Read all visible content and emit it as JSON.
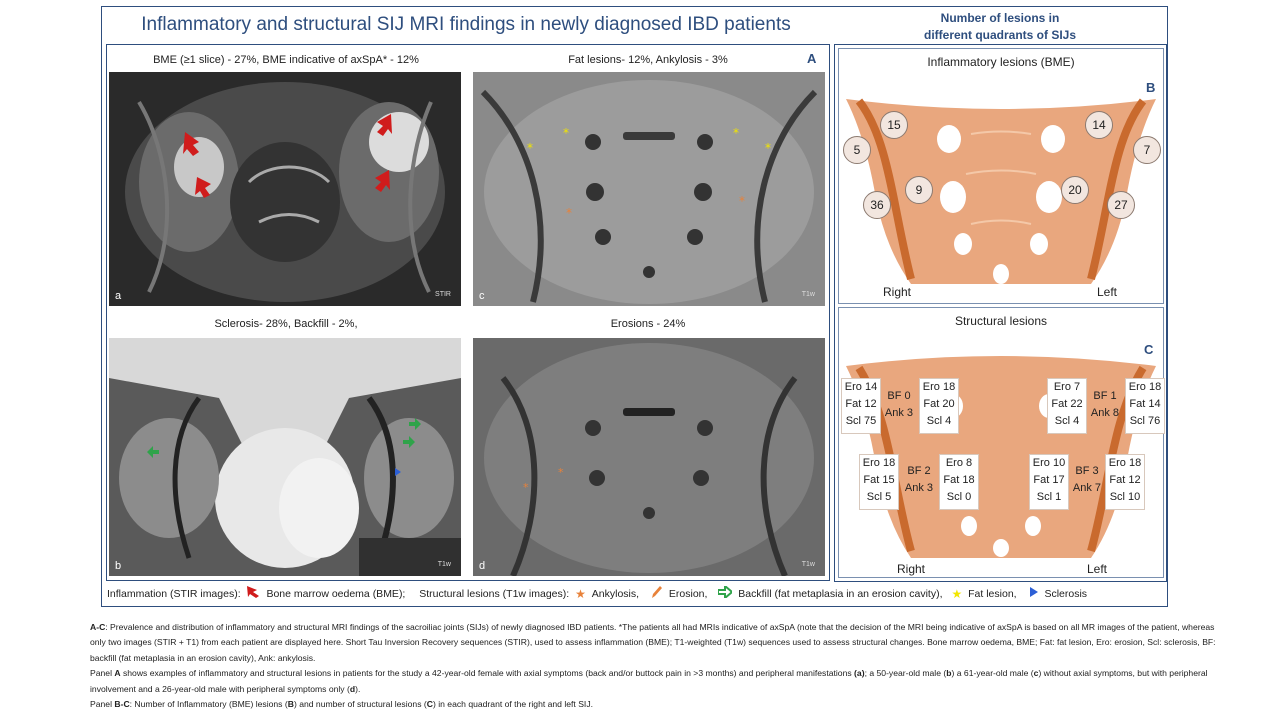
{
  "title": "Inflammatory and structural SIJ MRI findings in newly diagnosed IBD patients",
  "right_title_line1": "Number of lesions in",
  "right_title_line2": "different quadrants  of SIJs",
  "panelA": {
    "letter": "A",
    "images": [
      {
        "caption": "BME (≥1 slice) - 27%, BME indicative of axSpA* - 12%",
        "label": "a",
        "seq": "STIR"
      },
      {
        "caption": "Fat lesions- 12%, Ankylosis  - 3%",
        "label": "c",
        "seq": "T1w"
      },
      {
        "caption": "Sclerosis- 28%,  Backfill - 2%,",
        "label": "b",
        "seq": "T1w"
      },
      {
        "caption": "Erosions - 24%",
        "label": "d",
        "seq": "T1w"
      }
    ]
  },
  "panelB": {
    "letter": "B",
    "title": "Inflammatory lesions (BME)",
    "right": "Right",
    "left": "Left",
    "counts": {
      "r_outer_top": "5",
      "r_inner_top": "15",
      "r_inner_bot": "9",
      "r_outer_bot": "36",
      "l_inner_top": "14",
      "l_outer_top": "7",
      "l_inner_bot": "20",
      "l_outer_bot": "27"
    }
  },
  "panelC": {
    "letter": "C",
    "title": "Structural lesions",
    "right": "Right",
    "left": "Left",
    "rt_outer": [
      "Ero 14",
      "Fat 12",
      "Scl 75"
    ],
    "rt_mid": [
      "BF 0",
      "Ank 3"
    ],
    "rt_inner": [
      "Ero 18",
      "Fat 20",
      "Scl 4"
    ],
    "lt_inner": [
      "Ero 7",
      "Fat 22",
      "Scl 4"
    ],
    "lt_mid": [
      "BF 1",
      "Ank 8"
    ],
    "lt_outer": [
      "Ero 18",
      "Fat 14",
      "Scl 76"
    ],
    "rb_outer": [
      "Ero 18",
      "Fat 15",
      "Scl 5"
    ],
    "rb_mid": [
      "BF 2",
      "Ank 3"
    ],
    "rb_inner": [
      "Ero 8",
      "Fat 18",
      "Scl 0"
    ],
    "lb_inner": [
      "Ero 10",
      "Fat 17",
      "Scl 1"
    ],
    "lb_mid": [
      "BF 3",
      "Ank 7"
    ],
    "lb_outer": [
      "Ero 18",
      "Fat 12",
      "Scl 10"
    ]
  },
  "legend": {
    "inflammation": "Inflammation (STIR images):",
    "bme": "Bone marrow oedema (BME);",
    "structural": "Structural lesions (T1w images):",
    "ankylosis": "Ankylosis,",
    "erosion": "Erosion,",
    "backfill": "Backfill (fat metaplasia in an  erosion cavity),",
    "fat": "Fat lesion,",
    "sclerosis": "Sclerosis"
  },
  "footnote": {
    "p1_b1": "A-C",
    "p1_t1": ": Prevalence and distribution of inflammatory and structural MRI findings of the sacroiliac joints (SIJs) of newly diagnosed IBD patients. *The patients all had MRIs indicative of axSpA (note that the decision of the MRI being indicative of axSpA is based on all MR images of the patient, whereas only two images (STIR + T1) from each patient are displayed here. Short Tau Inversion Recovery sequences (STIR), used to assess inflammation (BME); T1-weighted (T1w) sequences used to assess structural changes. Bone marrow oedema, BME; Fat: fat lesion, Ero: erosion, Scl: sclerosis, BF: backfill (fat metaplasia in an erosion cavity), Ank: ankylosis.",
    "p2_t1": "Panel ",
    "p2_b1": "A",
    "p2_t2": " shows examples of inflammatory and structural lesions in patients for the study a 42-year-old female with axial symptoms (back and/or buttock pain in >3 months) and peripheral manifestations ",
    "p2_b2": "(a)",
    "p2_t3": "; a 50-year-old male (",
    "p2_b3": "b",
    "p2_t4": ") a 61-year-old male (",
    "p2_b4": "c",
    "p2_t5": ") without axial symptoms, but with peripheral involvement and a 26-year-old male with peripheral symptoms only (",
    "p2_b5": "d",
    "p2_t6": ").",
    "p3_t1": "Panel ",
    "p3_b1": "B-C",
    "p3_t2": ": Number of Inflammatory (BME) lesions (",
    "p3_b2": "B",
    "p3_t3": ") and number of structural lesions (",
    "p3_b3": "C",
    "p3_t4": ") in each quadrant of the right and left SIJ."
  },
  "colors": {
    "accent": "#2e4e7e",
    "bone": "#e9a77e",
    "joint": "#c96a2e",
    "bme_arrow": "#d01c1c",
    "ankylosis": "#e8823a",
    "backfill": "#2fa34a",
    "fat": "#f2e600",
    "sclerosis": "#2c5fd6"
  }
}
